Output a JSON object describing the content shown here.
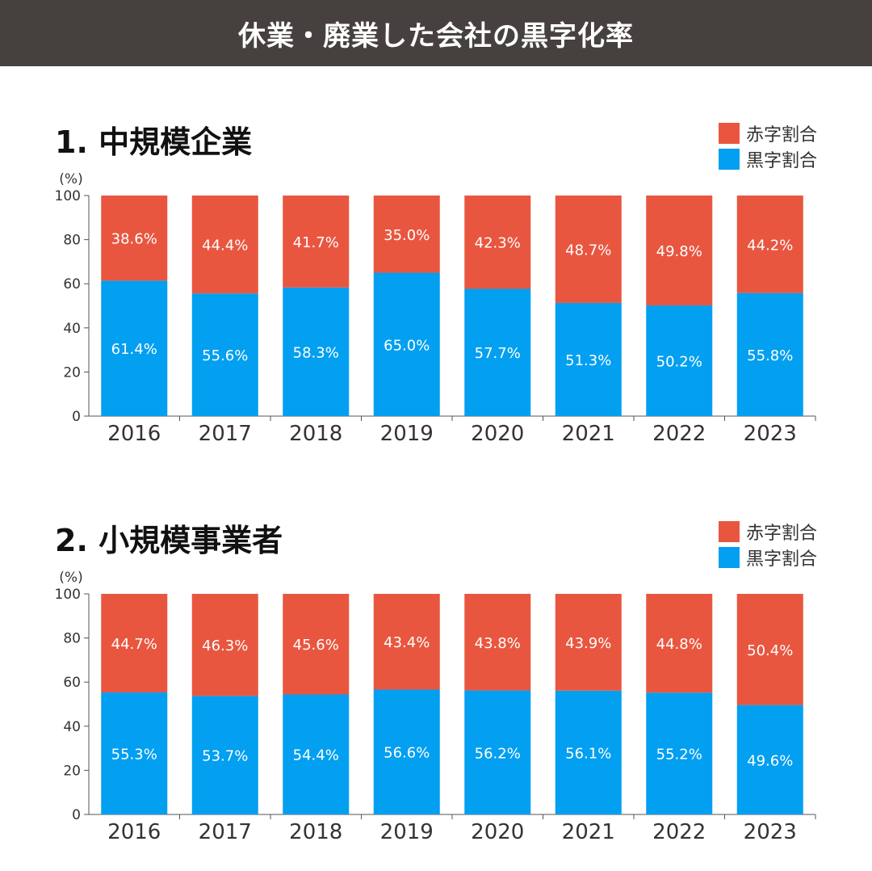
{
  "header": {
    "title": "休業・廃業した会社の黒字化率"
  },
  "colors": {
    "red": "#e9563f",
    "blue": "#039ff1",
    "header_bg": "#46413f"
  },
  "legend": {
    "red_label": "赤字割合",
    "blue_label": "黒字割合"
  },
  "chart_data": [
    {
      "type": "bar",
      "title": "1. 中規模企業",
      "ylabel": "(%)",
      "ylim": [
        0,
        100
      ],
      "yticks": [
        "0",
        "20",
        "40",
        "60",
        "80",
        "100"
      ],
      "categories": [
        "2016",
        "2017",
        "2018",
        "2019",
        "2020",
        "2021",
        "2022",
        "2023"
      ],
      "series": [
        {
          "name": "黒字割合",
          "color": "#039ff1",
          "values": [
            61.4,
            55.6,
            58.3,
            65.0,
            57.7,
            51.3,
            50.2,
            55.8
          ],
          "labels": [
            "61.4%",
            "55.6%",
            "58.3%",
            "65.0%",
            "57.7%",
            "51.3%",
            "50.2%",
            "55.8%"
          ]
        },
        {
          "name": "赤字割合",
          "color": "#e9563f",
          "values": [
            38.6,
            44.4,
            41.7,
            35.0,
            42.3,
            48.7,
            49.8,
            44.2
          ],
          "labels": [
            "38.6%",
            "44.4%",
            "41.7%",
            "35.0%",
            "42.3%",
            "48.7%",
            "49.8%",
            "44.2%"
          ]
        }
      ],
      "stacked": true
    },
    {
      "type": "bar",
      "title": "2. 小規模事業者",
      "ylabel": "(%)",
      "ylim": [
        0,
        100
      ],
      "yticks": [
        "0",
        "20",
        "40",
        "60",
        "80",
        "100"
      ],
      "categories": [
        "2016",
        "2017",
        "2018",
        "2019",
        "2020",
        "2021",
        "2022",
        "2023"
      ],
      "series": [
        {
          "name": "黒字割合",
          "color": "#039ff1",
          "values": [
            55.3,
            53.7,
            54.4,
            56.6,
            56.2,
            56.1,
            55.2,
            49.6
          ],
          "labels": [
            "55.3%",
            "53.7%",
            "54.4%",
            "56.6%",
            "56.2%",
            "56.1%",
            "55.2%",
            "49.6%"
          ]
        },
        {
          "name": "赤字割合",
          "color": "#e9563f",
          "values": [
            44.7,
            46.3,
            45.6,
            43.4,
            43.8,
            43.9,
            44.8,
            50.4
          ],
          "labels": [
            "44.7%",
            "46.3%",
            "45.6%",
            "43.4%",
            "43.8%",
            "43.9%",
            "44.8%",
            "50.4%"
          ]
        }
      ],
      "stacked": true
    }
  ]
}
